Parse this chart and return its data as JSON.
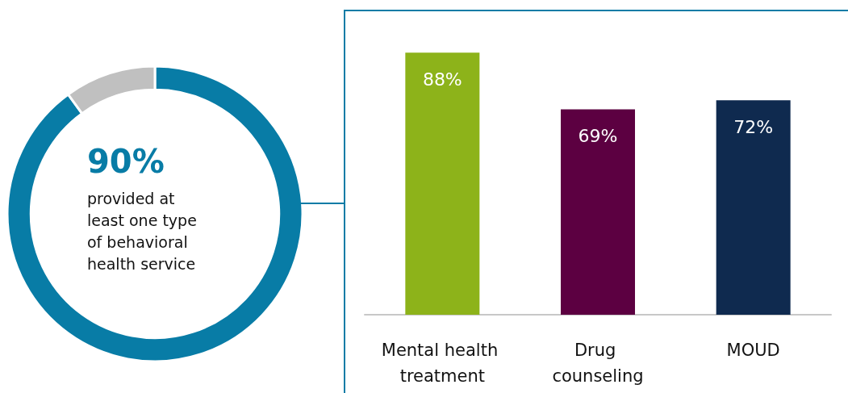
{
  "chart_data": [
    {
      "type": "donut",
      "categories": [
        null,
        null
      ],
      "values": [
        90,
        10
      ],
      "colors": [
        "#087ca6",
        "#c0c0c0"
      ],
      "value_labels": [
        "90%",
        null
      ],
      "annotations": [
        "provided at least one type of behavioral health service"
      ]
    },
    {
      "type": "bar",
      "categories": [
        "Mental health treatment",
        "Drug counseling",
        "MOUD"
      ],
      "values": [
        88,
        69,
        72
      ],
      "colors": [
        "#8db31a",
        "#5c0041",
        "#0f2a4f"
      ],
      "tick_labels": "x",
      "value_labels": [
        "88%",
        "69%",
        "72%"
      ]
    }
  ]
}
